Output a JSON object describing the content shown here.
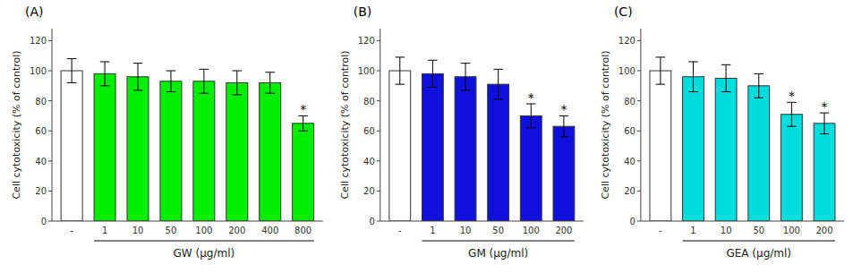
{
  "chart_data": [
    {
      "type": "bar",
      "title": "(A)",
      "xlabel": "GW (μg/ml)",
      "ylabel": "Cell cytotoxicity (% of control)",
      "categories": [
        "-",
        "1",
        "10",
        "50",
        "100",
        "200",
        "400",
        "800"
      ],
      "values": [
        100,
        98,
        96,
        93,
        93,
        92,
        92,
        65
      ],
      "errors": [
        8,
        8,
        9,
        7,
        8,
        8,
        7,
        5
      ],
      "significance_labels": [
        null,
        null,
        null,
        null,
        null,
        null,
        null,
        "*"
      ],
      "colors": [
        "white",
        "#00ee00",
        "#00ee00",
        "#00ee00",
        "#00ee00",
        "#00ee00",
        "#00ee00",
        "#00ee00"
      ],
      "ylim": [
        0,
        128
      ],
      "yticks": [
        0,
        20,
        40,
        60,
        80,
        100,
        120
      ],
      "grid": false
    },
    {
      "type": "bar",
      "title": "(B)",
      "xlabel": "GM (μg/ml)",
      "ylabel": "Cell cytotoxicity (% of control)",
      "categories": [
        "-",
        "1",
        "10",
        "50",
        "100",
        "200"
      ],
      "values": [
        100,
        98,
        96,
        91,
        70,
        63
      ],
      "errors": [
        9,
        9,
        9,
        10,
        8,
        7
      ],
      "significance_labels": [
        null,
        null,
        null,
        null,
        "*",
        "*"
      ],
      "colors": [
        "white",
        "#1010dd",
        "#1010dd",
        "#1010dd",
        "#1010dd",
        "#1010dd"
      ],
      "ylim": [
        0,
        128
      ],
      "yticks": [
        0,
        20,
        40,
        60,
        80,
        100,
        120
      ],
      "grid": false
    },
    {
      "type": "bar",
      "title": "(C)",
      "xlabel": "GEA (μg/ml)",
      "ylabel": "Cell cytotoxicity (% of control)",
      "categories": [
        "-",
        "1",
        "10",
        "50",
        "100",
        "200"
      ],
      "values": [
        100,
        96,
        95,
        90,
        71,
        65
      ],
      "errors": [
        9,
        10,
        9,
        8,
        8,
        7
      ],
      "significance_labels": [
        null,
        null,
        null,
        null,
        "*",
        "*"
      ],
      "colors": [
        "white",
        "#00dddd",
        "#00dddd",
        "#00dddd",
        "#00dddd",
        "#00dddd"
      ],
      "ylim": [
        0,
        128
      ],
      "yticks": [
        0,
        20,
        40,
        60,
        80,
        100,
        120
      ],
      "grid": false
    }
  ]
}
